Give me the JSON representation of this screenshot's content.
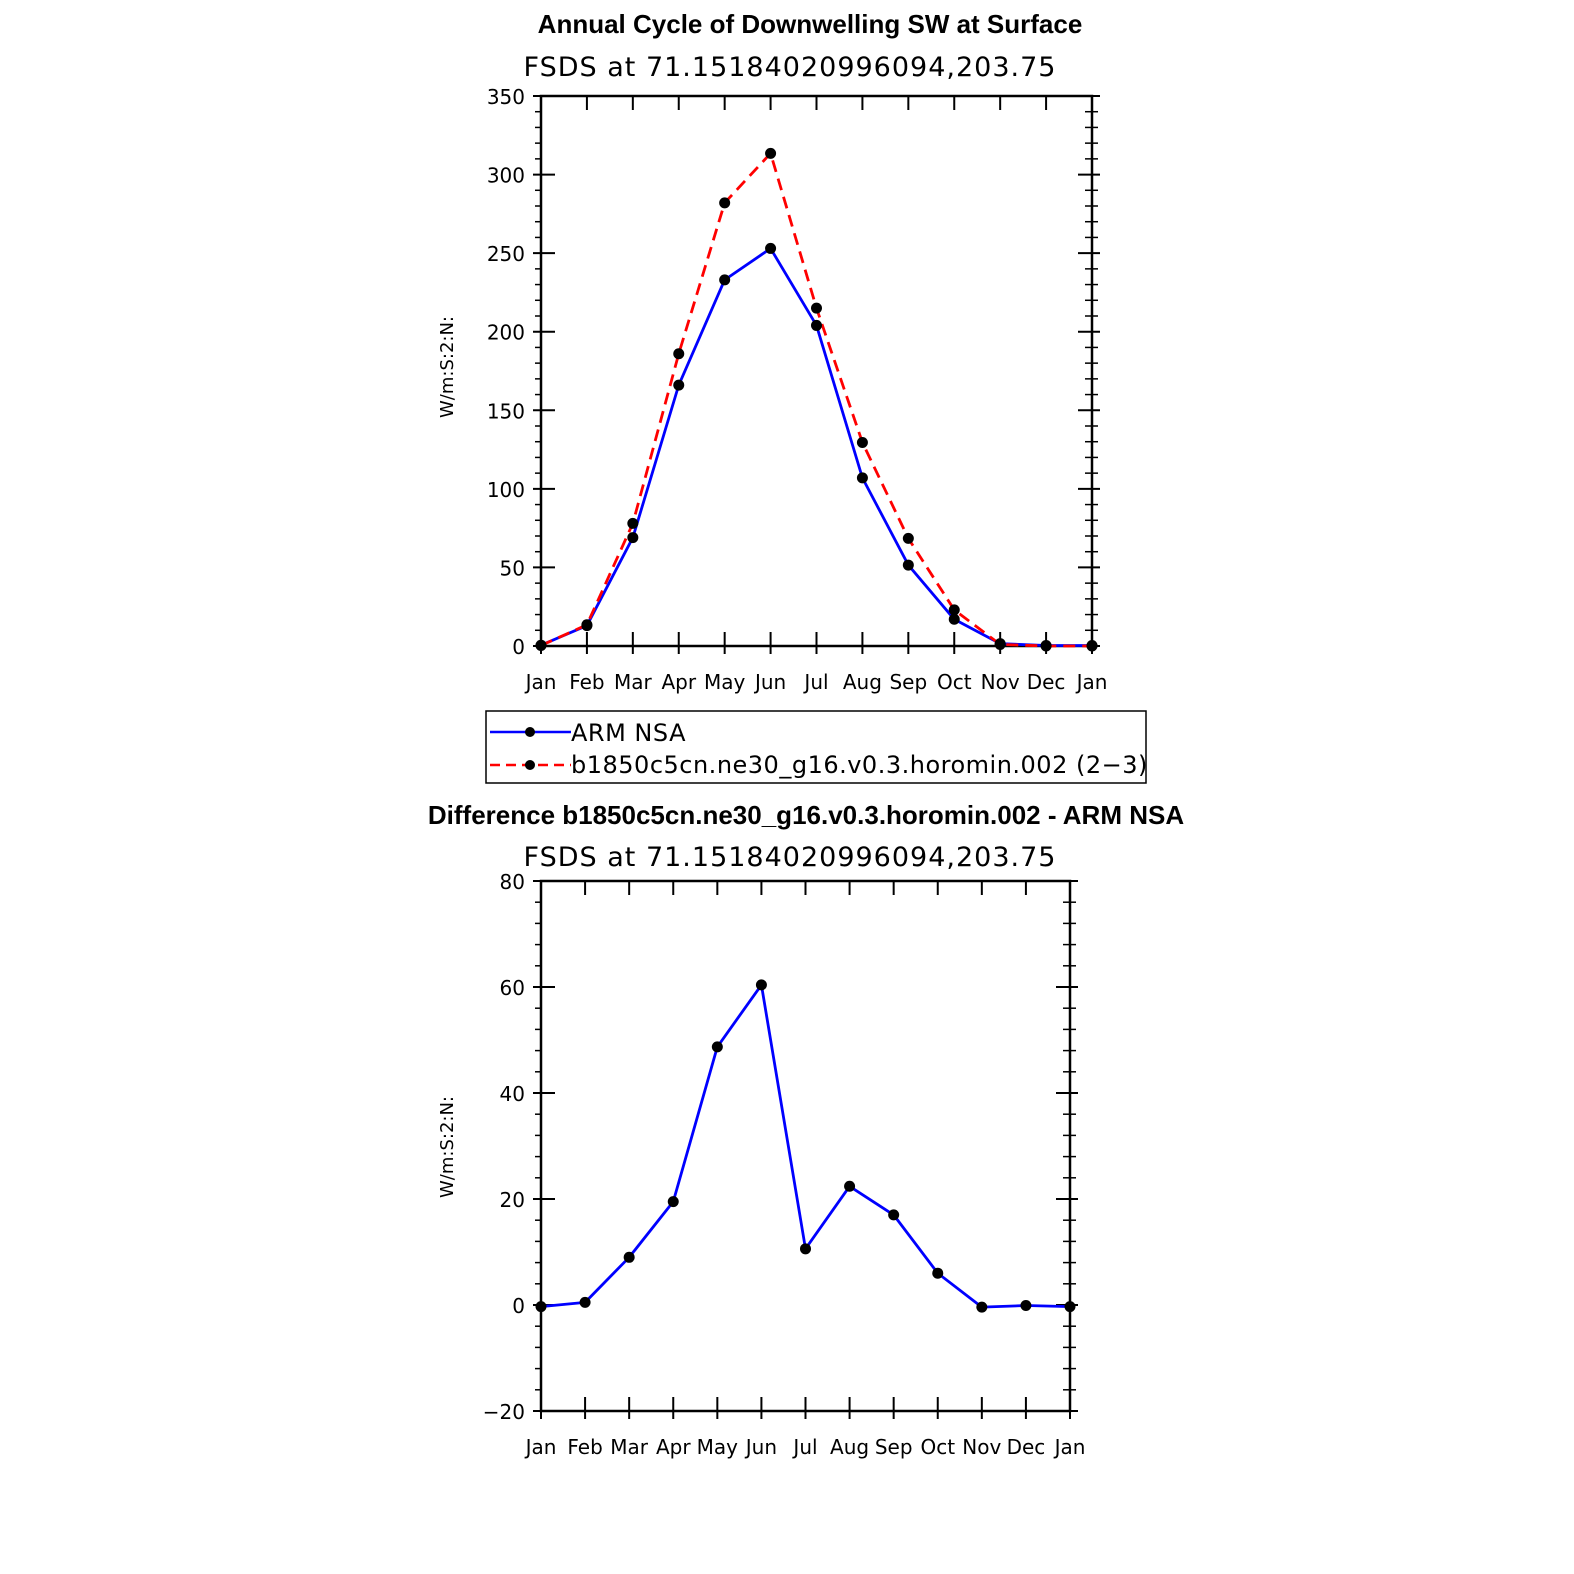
{
  "chart_data": [
    {
      "type": "line",
      "title": "Annual Cycle of Downwelling SW at Surface",
      "subtitle": "FSDS at 71.15184020996094,203.75",
      "ylabel": "W/m:S:2:N:",
      "xlabel": "",
      "categories": [
        "Jan",
        "Feb",
        "Mar",
        "Apr",
        "May",
        "Jun",
        "Jul",
        "Aug",
        "Sep",
        "Oct",
        "Nov",
        "Dec",
        "Jan"
      ],
      "ylim": [
        0,
        350
      ],
      "yticks": [
        0,
        50,
        100,
        150,
        200,
        250,
        300,
        350
      ],
      "legend": "bottom",
      "series": [
        {
          "name": "ARM NSA",
          "color": "#0000ff",
          "dash": "solid",
          "values": [
            0.5,
            13,
            69,
            166,
            233,
            253,
            204,
            107,
            51.5,
            17,
            1.5,
            0.3,
            0.3
          ]
        },
        {
          "name": "b1850c5cn.ne30_g16.v0.3.horomin.002 (2−3)",
          "color": "#ff0000",
          "dash": "dashed",
          "values": [
            0.3,
            13.5,
            78,
            186,
            282,
            313.5,
            215,
            129.5,
            68.5,
            23,
            1,
            0,
            0
          ]
        }
      ]
    },
    {
      "type": "line",
      "title": "Difference b1850c5cn.ne30_g16.v0.3.horomin.002 - ARM NSA",
      "subtitle": "FSDS at 71.15184020996094,203.75",
      "ylabel": "W/m:S:2:N:",
      "xlabel": "",
      "categories": [
        "Jan",
        "Feb",
        "Mar",
        "Apr",
        "May",
        "Jun",
        "Jul",
        "Aug",
        "Sep",
        "Oct",
        "Nov",
        "Dec",
        "Jan"
      ],
      "ylim": [
        -20,
        80
      ],
      "yticks": [
        -20,
        0,
        20,
        40,
        60,
        80
      ],
      "series": [
        {
          "color": "#0000ff",
          "dash": "solid",
          "values": [
            -0.3,
            0.5,
            9,
            19.5,
            48.7,
            60.4,
            10.6,
            22.4,
            17,
            6,
            -0.4,
            -0.1,
            -0.3
          ]
        }
      ]
    }
  ]
}
